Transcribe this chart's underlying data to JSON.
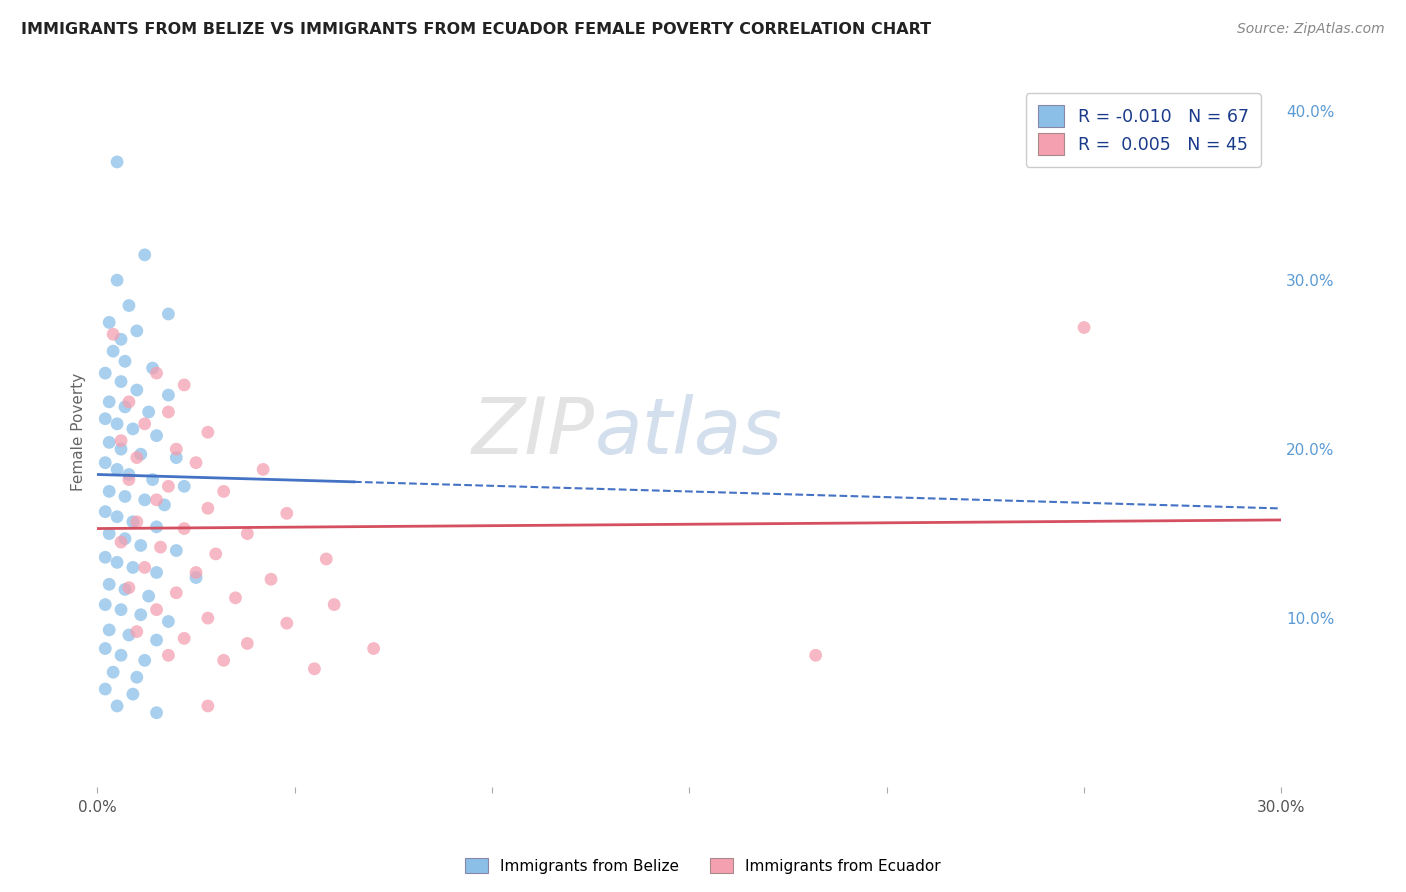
{
  "title": "IMMIGRANTS FROM BELIZE VS IMMIGRANTS FROM ECUADOR FEMALE POVERTY CORRELATION CHART",
  "source": "Source: ZipAtlas.com",
  "ylabel": "Female Poverty",
  "xlim": [
    0.0,
    0.3
  ],
  "ylim": [
    0.0,
    0.42
  ],
  "x_ticks": [
    0.0,
    0.05,
    0.1,
    0.15,
    0.2,
    0.25,
    0.3
  ],
  "x_tick_labels": [
    "0.0%",
    "",
    "",
    "",
    "",
    "",
    "30.0%"
  ],
  "y_ticks_right": [
    0.1,
    0.2,
    0.3,
    0.4
  ],
  "y_tick_labels_right": [
    "10.0%",
    "20.0%",
    "30.0%",
    "40.0%"
  ],
  "belize_color": "#8bbfe8",
  "ecuador_color": "#f4a0b0",
  "belize_line_color": "#4472c4",
  "ecuador_line_color": "#d45060",
  "watermark": "ZIPatlas",
  "belize_points": [
    [
      0.005,
      0.37
    ],
    [
      0.012,
      0.315
    ],
    [
      0.005,
      0.3
    ],
    [
      0.008,
      0.285
    ],
    [
      0.018,
      0.28
    ],
    [
      0.003,
      0.275
    ],
    [
      0.01,
      0.27
    ],
    [
      0.006,
      0.265
    ],
    [
      0.004,
      0.258
    ],
    [
      0.007,
      0.252
    ],
    [
      0.014,
      0.248
    ],
    [
      0.002,
      0.245
    ],
    [
      0.006,
      0.24
    ],
    [
      0.01,
      0.235
    ],
    [
      0.018,
      0.232
    ],
    [
      0.003,
      0.228
    ],
    [
      0.007,
      0.225
    ],
    [
      0.013,
      0.222
    ],
    [
      0.002,
      0.218
    ],
    [
      0.005,
      0.215
    ],
    [
      0.009,
      0.212
    ],
    [
      0.015,
      0.208
    ],
    [
      0.003,
      0.204
    ],
    [
      0.006,
      0.2
    ],
    [
      0.011,
      0.197
    ],
    [
      0.02,
      0.195
    ],
    [
      0.002,
      0.192
    ],
    [
      0.005,
      0.188
    ],
    [
      0.008,
      0.185
    ],
    [
      0.014,
      0.182
    ],
    [
      0.022,
      0.178
    ],
    [
      0.003,
      0.175
    ],
    [
      0.007,
      0.172
    ],
    [
      0.012,
      0.17
    ],
    [
      0.017,
      0.167
    ],
    [
      0.002,
      0.163
    ],
    [
      0.005,
      0.16
    ],
    [
      0.009,
      0.157
    ],
    [
      0.015,
      0.154
    ],
    [
      0.003,
      0.15
    ],
    [
      0.007,
      0.147
    ],
    [
      0.011,
      0.143
    ],
    [
      0.02,
      0.14
    ],
    [
      0.002,
      0.136
    ],
    [
      0.005,
      0.133
    ],
    [
      0.009,
      0.13
    ],
    [
      0.015,
      0.127
    ],
    [
      0.025,
      0.124
    ],
    [
      0.003,
      0.12
    ],
    [
      0.007,
      0.117
    ],
    [
      0.013,
      0.113
    ],
    [
      0.002,
      0.108
    ],
    [
      0.006,
      0.105
    ],
    [
      0.011,
      0.102
    ],
    [
      0.018,
      0.098
    ],
    [
      0.003,
      0.093
    ],
    [
      0.008,
      0.09
    ],
    [
      0.015,
      0.087
    ],
    [
      0.002,
      0.082
    ],
    [
      0.006,
      0.078
    ],
    [
      0.012,
      0.075
    ],
    [
      0.004,
      0.068
    ],
    [
      0.01,
      0.065
    ],
    [
      0.002,
      0.058
    ],
    [
      0.009,
      0.055
    ],
    [
      0.005,
      0.048
    ],
    [
      0.015,
      0.044
    ]
  ],
  "ecuador_points": [
    [
      0.004,
      0.268
    ],
    [
      0.015,
      0.245
    ],
    [
      0.022,
      0.238
    ],
    [
      0.008,
      0.228
    ],
    [
      0.018,
      0.222
    ],
    [
      0.012,
      0.215
    ],
    [
      0.028,
      0.21
    ],
    [
      0.006,
      0.205
    ],
    [
      0.02,
      0.2
    ],
    [
      0.01,
      0.195
    ],
    [
      0.025,
      0.192
    ],
    [
      0.042,
      0.188
    ],
    [
      0.008,
      0.182
    ],
    [
      0.018,
      0.178
    ],
    [
      0.032,
      0.175
    ],
    [
      0.015,
      0.17
    ],
    [
      0.028,
      0.165
    ],
    [
      0.048,
      0.162
    ],
    [
      0.01,
      0.157
    ],
    [
      0.022,
      0.153
    ],
    [
      0.038,
      0.15
    ],
    [
      0.006,
      0.145
    ],
    [
      0.016,
      0.142
    ],
    [
      0.03,
      0.138
    ],
    [
      0.058,
      0.135
    ],
    [
      0.012,
      0.13
    ],
    [
      0.025,
      0.127
    ],
    [
      0.044,
      0.123
    ],
    [
      0.008,
      0.118
    ],
    [
      0.02,
      0.115
    ],
    [
      0.035,
      0.112
    ],
    [
      0.06,
      0.108
    ],
    [
      0.015,
      0.105
    ],
    [
      0.028,
      0.1
    ],
    [
      0.048,
      0.097
    ],
    [
      0.01,
      0.092
    ],
    [
      0.022,
      0.088
    ],
    [
      0.038,
      0.085
    ],
    [
      0.07,
      0.082
    ],
    [
      0.018,
      0.078
    ],
    [
      0.032,
      0.075
    ],
    [
      0.055,
      0.07
    ],
    [
      0.25,
      0.272
    ],
    [
      0.182,
      0.078
    ],
    [
      0.028,
      0.048
    ]
  ]
}
